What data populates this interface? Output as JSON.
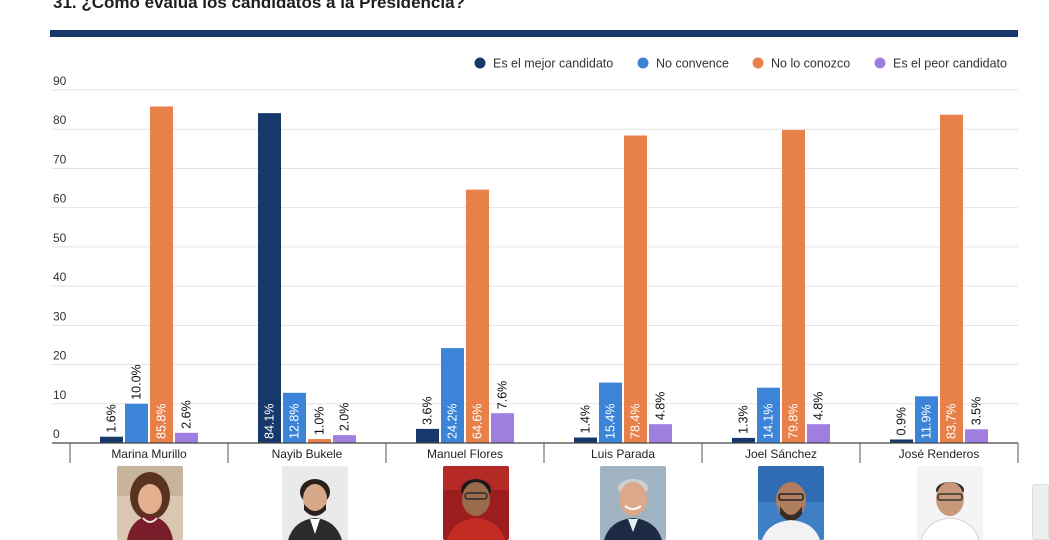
{
  "title": "31. ¿Cómo evalúa los candidatos a la Presidencia?",
  "chart_data": {
    "type": "bar",
    "title": "31. ¿Cómo evalúa los candidatos a la Presidencia?",
    "categories": [
      "Marina Murillo",
      "Nayib Bukele",
      "Manuel Flores",
      "Luis Parada",
      "Joel Sánchez",
      "José Renderos"
    ],
    "series": [
      {
        "name": "Es el mejor candidato",
        "color": "#17386b",
        "values": [
          1.6,
          84.1,
          3.6,
          1.4,
          1.3,
          0.9
        ]
      },
      {
        "name": "No convence",
        "color": "#3b84d8",
        "values": [
          10.0,
          12.8,
          24.2,
          15.4,
          14.1,
          11.9
        ]
      },
      {
        "name": "No lo conozco",
        "color": "#e8804a",
        "values": [
          85.8,
          1.0,
          64.6,
          78.4,
          79.8,
          83.7
        ]
      },
      {
        "name": "Es el peor candidato",
        "color": "#a07ee0",
        "values": [
          2.6,
          2.0,
          7.6,
          4.8,
          4.8,
          3.5
        ]
      }
    ],
    "data_labels": [
      [
        "1.6%",
        "10.0%",
        "85.8%",
        "2.6%"
      ],
      [
        "84.1%",
        "12.8%",
        "1.0%",
        "2.0%"
      ],
      [
        "3.6%",
        "24.2%",
        "64.6%",
        "7.6%"
      ],
      [
        "1.4%",
        "15.4%",
        "78.4%",
        "4.8%"
      ],
      [
        "1.3%",
        "14.1%",
        "79.8%",
        "4.8%"
      ],
      [
        "0.9%",
        "11.9%",
        "83.7%",
        "3.5%"
      ]
    ],
    "y_ticks": [
      "0",
      "10",
      "20",
      "30",
      "40",
      "50",
      "60",
      "70",
      "80",
      "90"
    ],
    "ylim": [
      0,
      90
    ],
    "grid": true,
    "legend_position": "top-right"
  },
  "photos": [
    {
      "icon": "portrait-marina-murillo"
    },
    {
      "icon": "portrait-nayib-bukele"
    },
    {
      "icon": "portrait-manuel-flores"
    },
    {
      "icon": "portrait-luis-parada"
    },
    {
      "icon": "portrait-joel-sanchez"
    },
    {
      "icon": "portrait-jose-renderos"
    }
  ]
}
